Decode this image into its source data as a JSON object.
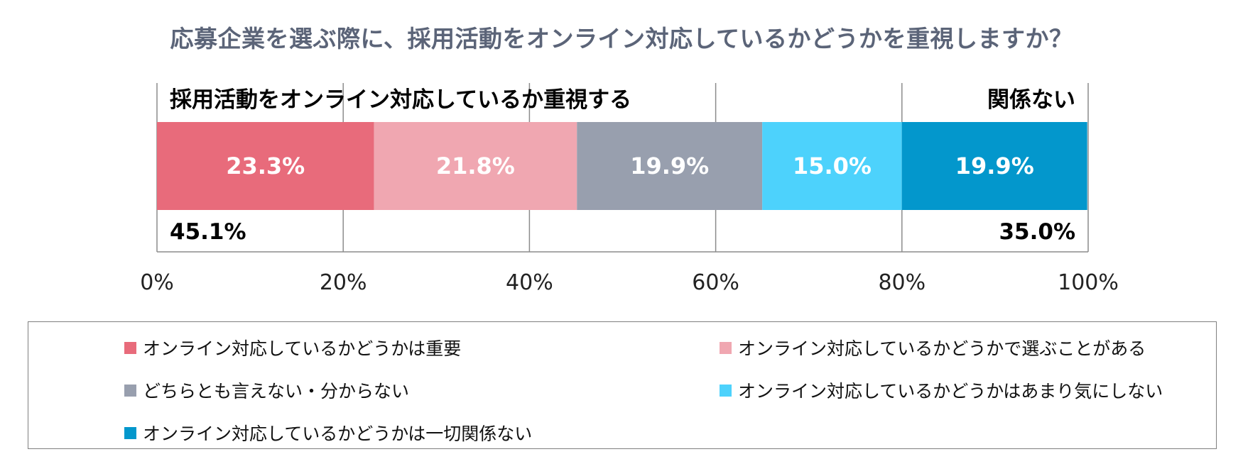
{
  "chart_data": {
    "type": "bar",
    "orientation": "horizontal-stacked-100",
    "title": "応募企業を選ぶ際に、採用活動をオンライン対応しているかどうかを重視しますか？",
    "series": [
      {
        "name": "オンライン対応しているかどうかは重要",
        "value": 23.3,
        "label": "23.3%",
        "color": "#e86b7b"
      },
      {
        "name": "オンライン対応しているかどうかで選ぶことがある",
        "value": 21.8,
        "label": "21.8%",
        "color": "#f0a7b1"
      },
      {
        "name": "どちらとも言えない・分からない",
        "value": 19.9,
        "label": "19.9%",
        "color": "#989fae"
      },
      {
        "name": "オンライン対応しているかどうかはあまり気にしない",
        "value": 15.0,
        "label": "15.0%",
        "color": "#4dd2fc"
      },
      {
        "name": "オンライン対応しているかどうかは一切関係ない",
        "value": 19.9,
        "label": "19.9%",
        "color": "#0397cc"
      }
    ],
    "groups": [
      {
        "label": "採用活動をオンライン対応しているか重視する",
        "total": "45.1%",
        "start": 0,
        "end": 45.1,
        "align": "left"
      },
      {
        "label": "関係ない",
        "total": "35.0%",
        "start": 65.0,
        "end": 100,
        "align": "right"
      }
    ],
    "xlim": [
      0,
      100
    ],
    "xticks": [
      0,
      20,
      40,
      60,
      80,
      100
    ],
    "xtick_labels": [
      "0%",
      "20%",
      "40%",
      "60%",
      "80%",
      "100%"
    ],
    "grid": true,
    "legend_position": "bottom"
  }
}
